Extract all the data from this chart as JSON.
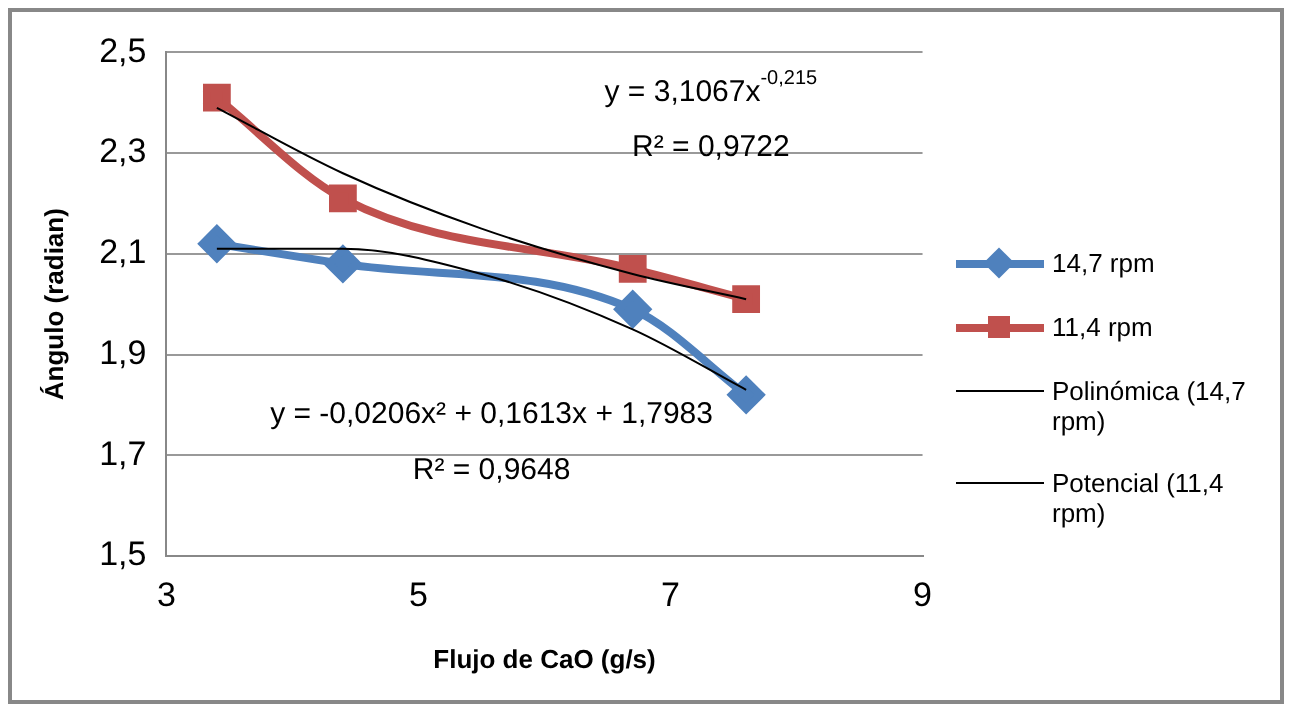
{
  "chart_data": {
    "type": "line",
    "xlabel": "Flujo de CaO (g/s)",
    "ylabel": "Ángulo (radian)",
    "xlim": [
      3,
      9
    ],
    "xticks": [
      3,
      5,
      7,
      9
    ],
    "ylim": [
      1.5,
      2.5
    ],
    "yticks": [
      {
        "value": 1.5,
        "label": "1,5"
      },
      {
        "value": 1.7,
        "label": "1,7"
      },
      {
        "value": 1.9,
        "label": "1,9"
      },
      {
        "value": 2.1,
        "label": "2,1"
      },
      {
        "value": 2.3,
        "label": "2,3"
      },
      {
        "value": 2.5,
        "label": "2,5"
      }
    ],
    "grid": "y",
    "legend": "right",
    "line_style": "solid",
    "series": [
      {
        "name": "14,7 rpm",
        "color": "#4f81bd",
        "marker": "diamond",
        "x": [
          3.4,
          4.4,
          6.7,
          7.6
        ],
        "values": [
          2.12,
          2.08,
          1.99,
          1.82
        ]
      },
      {
        "name": "11,4 rpm",
        "color": "#c0504d",
        "marker": "square",
        "x": [
          3.4,
          4.4,
          6.7,
          7.6
        ],
        "values": [
          2.41,
          2.21,
          2.07,
          2.01
        ]
      },
      {
        "name": "Polinómica (14,7 rpm)",
        "color": "#000000",
        "marker": "none",
        "x": [
          3.4,
          4.4,
          5.5,
          6.7,
          7.6
        ],
        "values": [
          2.11,
          2.11,
          2.06,
          1.95,
          1.83
        ]
      },
      {
        "name": "Potencial (11,4 rpm)",
        "color": "#000000",
        "marker": "none",
        "x": [
          3.4,
          4.4,
          5.5,
          6.7,
          7.6
        ],
        "values": [
          2.39,
          2.26,
          2.15,
          2.06,
          2.01
        ]
      }
    ],
    "annotations": [
      "y = 3,1067x$^{-0,215}$",
      "R² = 0,9722",
      "y = -0,0206x² + 0,1613x + 1,7983",
      "R² = 0,9648"
    ]
  }
}
